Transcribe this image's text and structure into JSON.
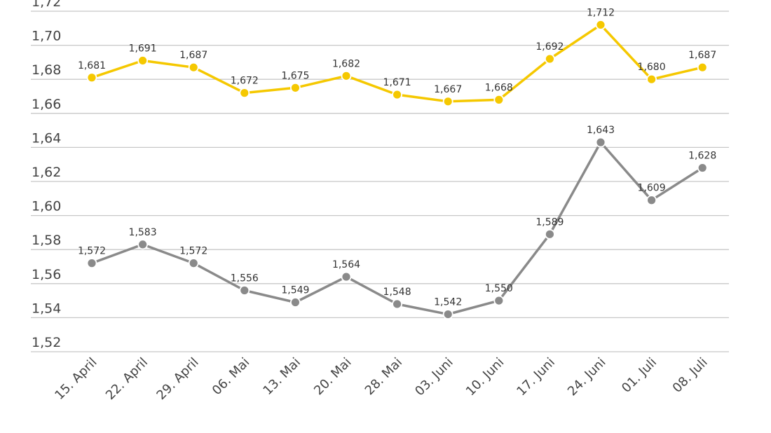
{
  "chart_data": {
    "type": "line",
    "title": "",
    "xlabel": "",
    "ylabel": "",
    "ylim": [
      1.52,
      1.72
    ],
    "y_ticks": [
      "1,52",
      "1,54",
      "1,56",
      "1,58",
      "1,60",
      "1,62",
      "1,64",
      "1,66",
      "1,68",
      "1,70",
      "1,72"
    ],
    "grid": true,
    "categories": [
      "15. April",
      "22. April",
      "29. April",
      "06. Mai",
      "13. Mai",
      "20. Mai",
      "28. Mai",
      "03. Juni",
      "10. Juni",
      "17. Juni",
      "24. Juni",
      "01. Juli",
      "08. Juli"
    ],
    "series": [
      {
        "color": "#f5c800",
        "values": [
          1.681,
          1.691,
          1.687,
          1.672,
          1.675,
          1.682,
          1.671,
          1.667,
          1.668,
          1.692,
          1.712,
          1.68,
          1.687
        ],
        "labels": [
          "1,681",
          "1,691",
          "1,687",
          "1,672",
          "1,675",
          "1,682",
          "1,671",
          "1,667",
          "1,668",
          "1,692",
          "1,712",
          "1,680",
          "1,687"
        ]
      },
      {
        "color": "#8a8a8a",
        "values": [
          1.572,
          1.583,
          1.572,
          1.556,
          1.549,
          1.564,
          1.548,
          1.542,
          1.55,
          1.589,
          1.643,
          1.609,
          1.628
        ],
        "labels": [
          "1,572",
          "1,583",
          "1,572",
          "1,556",
          "1,549",
          "1,564",
          "1,548",
          "1,542",
          "1,550",
          "1,589",
          "1,643",
          "1,609",
          "1,628"
        ]
      }
    ]
  }
}
